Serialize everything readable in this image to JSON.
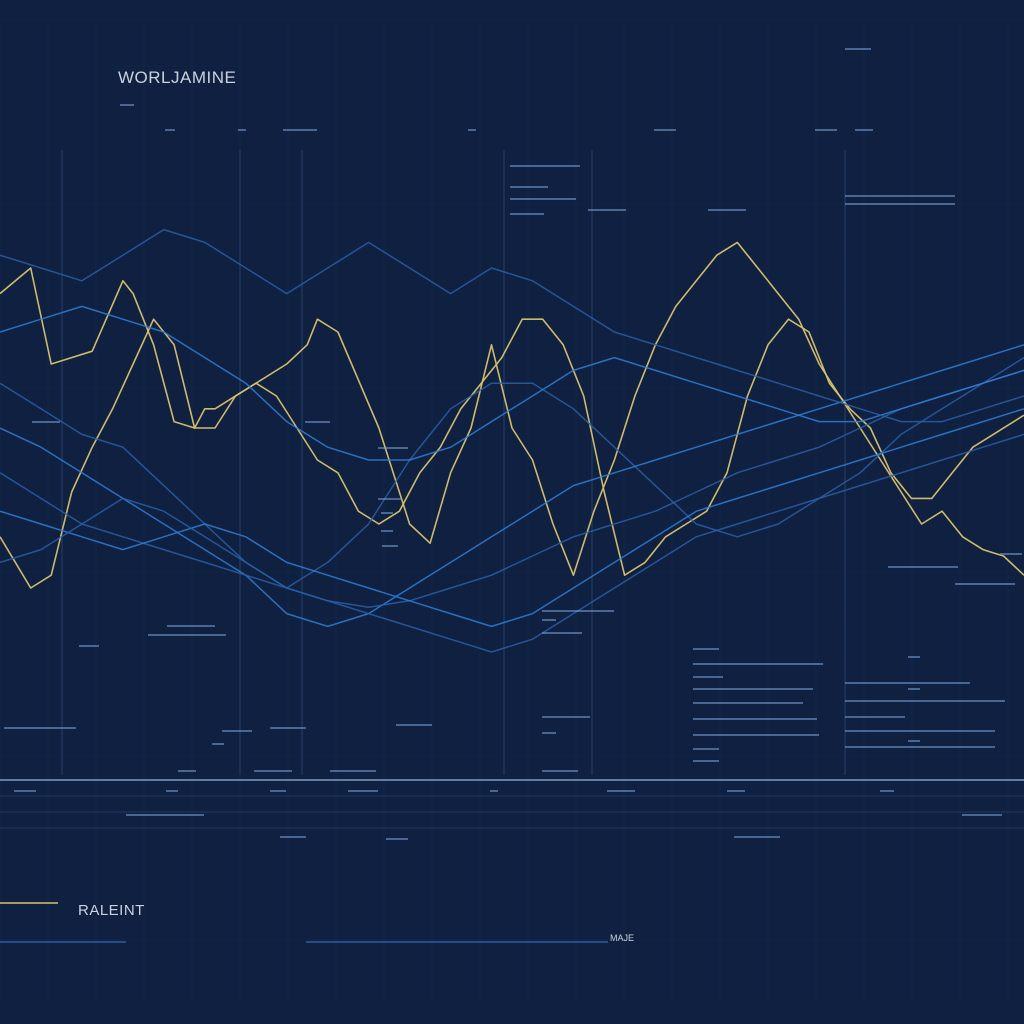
{
  "header": {
    "title": "WORLJAMINE"
  },
  "footer": {
    "label": "RALEINT",
    "small_label": "MAJE"
  },
  "colors": {
    "background": "#0f2040",
    "grid": "#1e3458",
    "blue_line": "#2f7fd8",
    "blue_line_dim": "#2a5fa8",
    "gold_line": "#d9c370",
    "baseline": "#7f9cc4",
    "label_dash": "#7aa2d6"
  },
  "chart_data": {
    "type": "line",
    "title": "WORLJAMINE",
    "xlabel": "",
    "ylabel": "",
    "xlim": [
      0,
      100
    ],
    "ylim": [
      0,
      100
    ],
    "grid": true,
    "series": [
      {
        "color": "gold",
        "x": [
          0,
          3,
          5,
          9,
          12,
          13,
          15,
          17,
          19,
          20,
          21,
          25,
          28,
          30,
          31,
          33,
          37,
          40,
          42,
          44,
          46,
          48,
          50,
          52,
          54,
          56,
          58,
          60,
          62,
          64,
          66,
          68,
          70,
          72,
          74,
          76,
          78,
          80,
          82,
          84,
          86,
          88,
          90,
          92,
          94,
          96,
          98,
          100
        ],
        "y": [
          76,
          80,
          65,
          67,
          78,
          76,
          68,
          56,
          55,
          58,
          58,
          62,
          65,
          68,
          72,
          70,
          55,
          40,
          37,
          48,
          55,
          68,
          55,
          50,
          40,
          32,
          42,
          50,
          60,
          68,
          74,
          78,
          82,
          84,
          80,
          76,
          72,
          65,
          60,
          55,
          50,
          45,
          40,
          42,
          38,
          36,
          35,
          32
        ]
      },
      {
        "color": "gold",
        "x": [
          0,
          3,
          5,
          7,
          9,
          11,
          13,
          15,
          17,
          19,
          21,
          23,
          25,
          27,
          29,
          31,
          33,
          35,
          37,
          39,
          41,
          43,
          45,
          47,
          49,
          51,
          53,
          55,
          57,
          59,
          61,
          63,
          65,
          67,
          69,
          71,
          73,
          75,
          77,
          79,
          81,
          83,
          85,
          87,
          89,
          91,
          93,
          95,
          97,
          99,
          100
        ],
        "y": [
          38,
          30,
          32,
          45,
          52,
          58,
          65,
          72,
          68,
          55,
          55,
          60,
          62,
          60,
          55,
          50,
          48,
          42,
          40,
          42,
          48,
          52,
          58,
          62,
          66,
          72,
          72,
          68,
          60,
          45,
          32,
          34,
          38,
          40,
          42,
          48,
          60,
          68,
          72,
          70,
          62,
          58,
          55,
          48,
          44,
          44,
          48,
          52,
          54,
          56,
          57
        ]
      },
      {
        "color": "blue",
        "x": [
          0,
          4,
          8,
          12,
          16,
          20,
          24,
          28,
          32,
          36,
          40,
          44,
          48,
          52,
          56,
          60,
          64,
          68,
          72,
          76,
          80,
          84,
          88,
          92,
          96,
          100
        ],
        "y": [
          62,
          58,
          54,
          52,
          46,
          40,
          34,
          30,
          34,
          40,
          50,
          58,
          62,
          62,
          58,
          52,
          46,
          40,
          38,
          40,
          44,
          48,
          54,
          58,
          62,
          66
        ]
      },
      {
        "color": "blue",
        "x": [
          0,
          4,
          8,
          12,
          16,
          20,
          24,
          28,
          32,
          36,
          40,
          44,
          48,
          52,
          56,
          60,
          64,
          68,
          72,
          76,
          80,
          84,
          88,
          92,
          96,
          100
        ],
        "y": [
          55,
          52,
          48,
          44,
          40,
          36,
          32,
          26,
          24,
          26,
          30,
          34,
          38,
          42,
          46,
          48,
          50,
          52,
          54,
          56,
          58,
          60,
          62,
          64,
          66,
          68
        ]
      },
      {
        "color": "blue",
        "x": [
          0,
          4,
          8,
          12,
          16,
          20,
          24,
          28,
          32,
          36,
          40,
          44,
          48,
          52,
          56,
          60,
          64,
          68,
          72,
          76,
          80,
          84,
          88,
          92,
          96,
          100
        ],
        "y": [
          48,
          44,
          40,
          38,
          36,
          34,
          32,
          30,
          28,
          27,
          28,
          30,
          32,
          35,
          38,
          40,
          42,
          45,
          48,
          50,
          52,
          55,
          58,
          60,
          62,
          64
        ]
      },
      {
        "color": "blue",
        "x": [
          0,
          4,
          8,
          12,
          16,
          20,
          24,
          28,
          32,
          36,
          40,
          44,
          48,
          52,
          56,
          60,
          64,
          68,
          72,
          76,
          80,
          84,
          88,
          92,
          96,
          100
        ],
        "y": [
          70,
          72,
          74,
          72,
          70,
          66,
          62,
          56,
          52,
          50,
          50,
          52,
          56,
          60,
          64,
          66,
          64,
          62,
          60,
          58,
          56,
          56,
          58,
          60,
          62,
          64
        ]
      },
      {
        "color": "blue",
        "x": [
          0,
          4,
          8,
          12,
          16,
          20,
          24,
          28,
          32,
          36,
          40,
          44,
          48,
          52,
          56,
          60,
          64,
          68,
          72,
          76,
          80,
          84,
          88,
          92,
          96,
          100
        ],
        "y": [
          82,
          80,
          78,
          82,
          86,
          84,
          80,
          76,
          80,
          84,
          80,
          76,
          80,
          78,
          74,
          70,
          68,
          66,
          64,
          62,
          60,
          58,
          56,
          56,
          58,
          60
        ]
      },
      {
        "color": "blue",
        "x": [
          0,
          4,
          8,
          12,
          16,
          20,
          24,
          28,
          32,
          36,
          40,
          44,
          48,
          52,
          56,
          60,
          64,
          68,
          72,
          76,
          80,
          84,
          88,
          92,
          96,
          100
        ],
        "y": [
          42,
          40,
          38,
          36,
          38,
          40,
          38,
          34,
          32,
          30,
          28,
          26,
          24,
          26,
          30,
          34,
          38,
          42,
          44,
          46,
          48,
          50,
          52,
          54,
          56,
          58
        ]
      },
      {
        "color": "blue",
        "x": [
          0,
          4,
          8,
          12,
          16,
          20,
          24,
          28,
          32,
          36,
          40,
          44,
          48,
          52,
          56,
          60,
          64,
          68,
          72,
          76,
          80,
          84,
          88,
          92,
          96,
          100
        ],
        "y": [
          34,
          36,
          40,
          44,
          42,
          38,
          34,
          30,
          28,
          26,
          24,
          22,
          20,
          22,
          26,
          30,
          34,
          38,
          40,
          42,
          44,
          46,
          48,
          50,
          52,
          54
        ]
      }
    ]
  }
}
